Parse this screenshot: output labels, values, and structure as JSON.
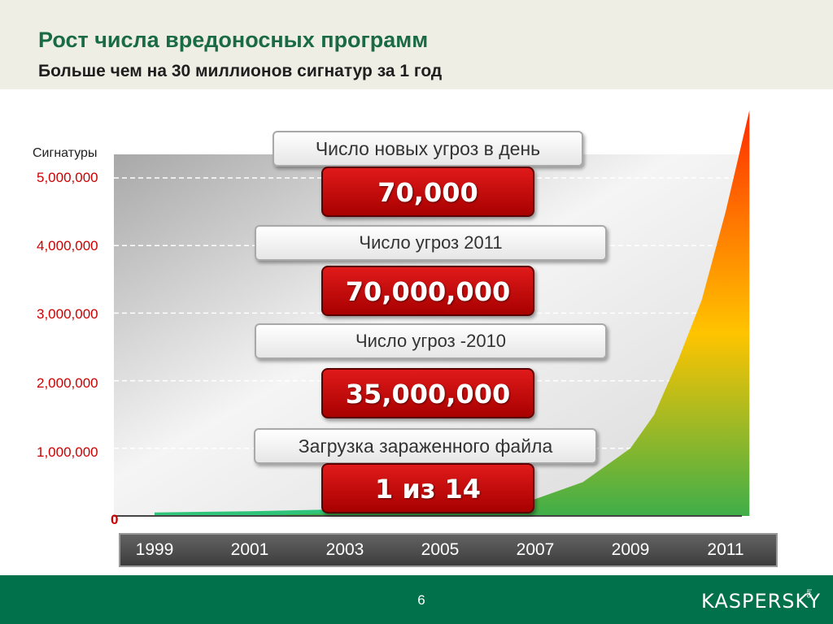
{
  "header": {
    "title": "Рост числа вредоносных программ",
    "subtitle": "Больше чем на 30 миллионов сигнатур за 1 год"
  },
  "chart_data": {
    "type": "area",
    "ylabel": "Сигнатуры",
    "y_ticks": [
      "5,000,000",
      "4,000,000",
      "3,000,000",
      "2,000,000",
      "1,000,000",
      "0"
    ],
    "y_tick_values": [
      5000000,
      4000000,
      3000000,
      2000000,
      1000000,
      0
    ],
    "ylim": [
      0,
      6000000
    ],
    "x_ticks": [
      "1999",
      "2001",
      "2003",
      "2005",
      "2007",
      "2009",
      "2011"
    ],
    "xlim": [
      1999,
      2011.5
    ],
    "grid": true,
    "series": [
      {
        "x": [
          1999,
          2001,
          2003,
          2005,
          2006,
          2007,
          2008,
          2009,
          2009.5,
          2010,
          2010.5,
          2011,
          2011.5
        ],
        "values": [
          20000,
          40000,
          70000,
          110000,
          150000,
          250000,
          500000,
          1000000,
          1500000,
          2300000,
          3200000,
          4500000,
          6000000
        ]
      }
    ],
    "annotations": [
      {
        "label": "Число новых угроз в день",
        "value": "70,000"
      },
      {
        "label": "Число угроз 2011",
        "value": "70,000,000"
      },
      {
        "label": "Число угроз -2010",
        "value": "35,000,000"
      },
      {
        "label": "Загрузка зараженного файла",
        "value": "1 из 14"
      }
    ],
    "colors": {
      "area_top": "#ff2a00",
      "area_mid": "#ffc400",
      "area_bottom": "#3fae49",
      "line": "#2ec47a"
    }
  },
  "footer": {
    "page_number": "6",
    "logo": "KASPERSKY",
    "logo_suffix": "lab"
  }
}
